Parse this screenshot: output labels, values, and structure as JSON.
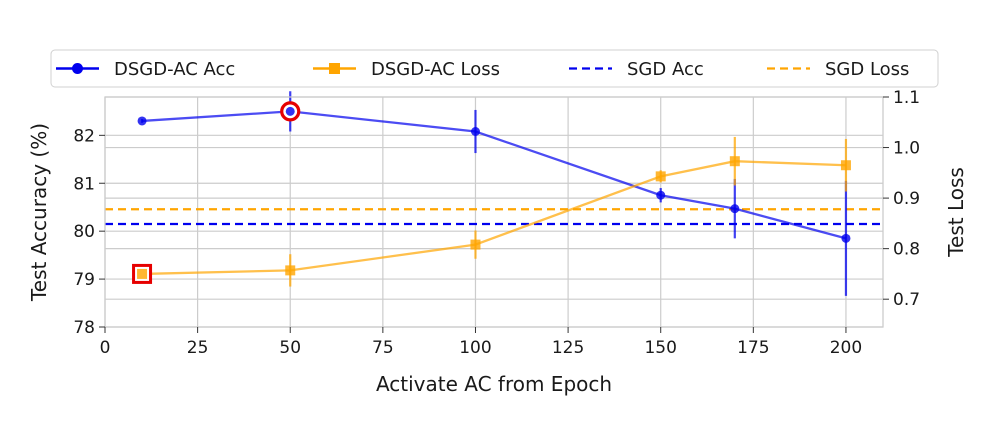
{
  "chart_data": {
    "type": "line",
    "xlabel": "Activate AC from Epoch",
    "ylabel_left": "Test Accuracy (%)",
    "ylabel_right": "Test Loss",
    "xlim": [
      0,
      210
    ],
    "ylim_left": [
      78,
      82.8
    ],
    "ylim_right": [
      0.645,
      1.1
    ],
    "xticks": [
      0,
      25,
      50,
      75,
      100,
      125,
      150,
      175,
      200
    ],
    "yticks_left": [
      78,
      79,
      80,
      81,
      82
    ],
    "yticks_right": [
      0.7,
      0.8,
      0.9,
      1.0,
      1.1
    ],
    "yticklabels_right": [
      "0.7",
      "0.8",
      "0.9",
      "1.0",
      "1.1"
    ],
    "grid": true,
    "legend_position": "top, outside",
    "series": [
      {
        "name": "DSGD-AC Acc",
        "axis": "left",
        "color": "#0000ee",
        "marker": "circle",
        "style": "solid",
        "x": [
          10,
          50,
          100,
          150,
          170,
          200
        ],
        "values": [
          82.3,
          82.5,
          82.08,
          80.75,
          80.47,
          79.85
        ],
        "err": [
          0.04,
          0.42,
          0.45,
          0.15,
          0.62,
          1.2
        ],
        "highlight_index": 1
      },
      {
        "name": "DSGD-AC Loss",
        "axis": "right",
        "color": "#ffa500",
        "marker": "square",
        "style": "solid",
        "x": [
          10,
          50,
          100,
          150,
          170,
          200
        ],
        "values": [
          0.75,
          0.757,
          0.808,
          0.943,
          0.973,
          0.965
        ],
        "err": [
          0.008,
          0.032,
          0.028,
          0.012,
          0.048,
          0.052
        ],
        "highlight_index": 0
      },
      {
        "name": "SGD Acc",
        "axis": "left",
        "color": "#0000ee",
        "style": "dashed",
        "value": 80.15
      },
      {
        "name": "SGD Loss",
        "axis": "right",
        "color": "#ffa500",
        "style": "dashed",
        "value": 0.878
      }
    ]
  }
}
